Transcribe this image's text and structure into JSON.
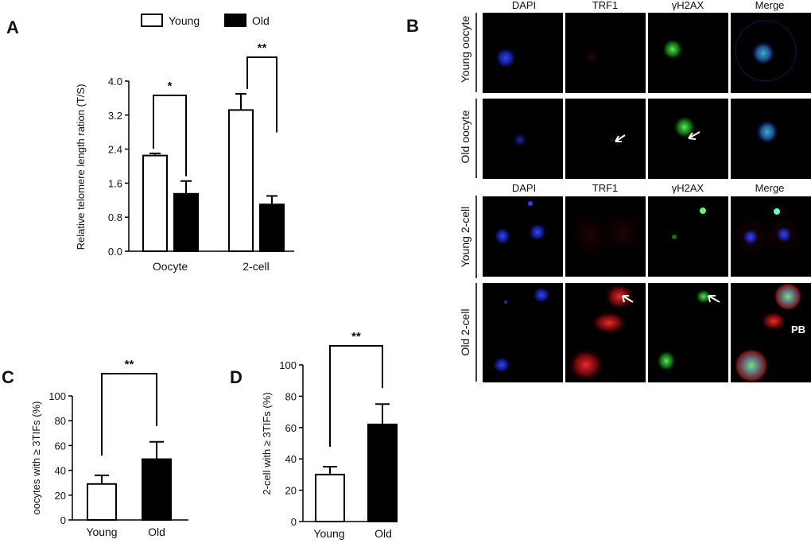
{
  "panels": {
    "a": "A",
    "b": "B",
    "c": "C",
    "d": "D"
  },
  "legend": {
    "young": "Young",
    "old": "Old"
  },
  "colors": {
    "young_fill": "#ffffff",
    "old_fill": "#000000",
    "stroke": "#000000"
  },
  "chart_data": [
    {
      "panel": "A",
      "type": "bar",
      "title": "",
      "xlabel": "",
      "ylabel": "Relative telomere length ration (T/S)",
      "categories": [
        "Oocyte",
        "2-cell"
      ],
      "series": [
        {
          "name": "Young",
          "values": [
            2.25,
            3.32
          ],
          "errors": [
            0.05,
            0.38
          ]
        },
        {
          "name": "Old",
          "values": [
            1.35,
            1.1
          ],
          "errors": [
            0.3,
            0.2
          ]
        }
      ],
      "ylim": [
        0,
        4.0
      ],
      "yticks": [
        "0.0",
        "0.8",
        "1.6",
        "2.4",
        "3.2",
        "4.0"
      ],
      "significance": [
        "*",
        "**"
      ],
      "legend_position": "top"
    },
    {
      "panel": "C",
      "type": "bar",
      "title": "",
      "xlabel": "",
      "ylabel": "oocytes with ≥ 3TIFs (%)",
      "categories": [
        "Young",
        "Old"
      ],
      "values": [
        29,
        49
      ],
      "errors": [
        7,
        14
      ],
      "ylim": [
        0,
        100
      ],
      "yticks": [
        "0",
        "20",
        "40",
        "60",
        "80",
        "100"
      ],
      "significance": "**"
    },
    {
      "panel": "D",
      "type": "bar",
      "title": "",
      "xlabel": "",
      "ylabel": "2-cell with ≥ 3TIFs (%)",
      "categories": [
        "Young",
        "Old"
      ],
      "values": [
        30,
        62
      ],
      "errors": [
        5,
        13
      ],
      "ylim": [
        0,
        100
      ],
      "yticks": [
        "0",
        "20",
        "40",
        "60",
        "80",
        "100"
      ],
      "significance": "**"
    }
  ],
  "microscopy": {
    "columns": [
      "DAPI",
      "TRF1",
      "γH2AX",
      "Merge"
    ],
    "rows": [
      "Young oocyte",
      "Old oocyte",
      "Young 2-cell",
      "Old 2-cell"
    ],
    "annotation": "PB"
  }
}
